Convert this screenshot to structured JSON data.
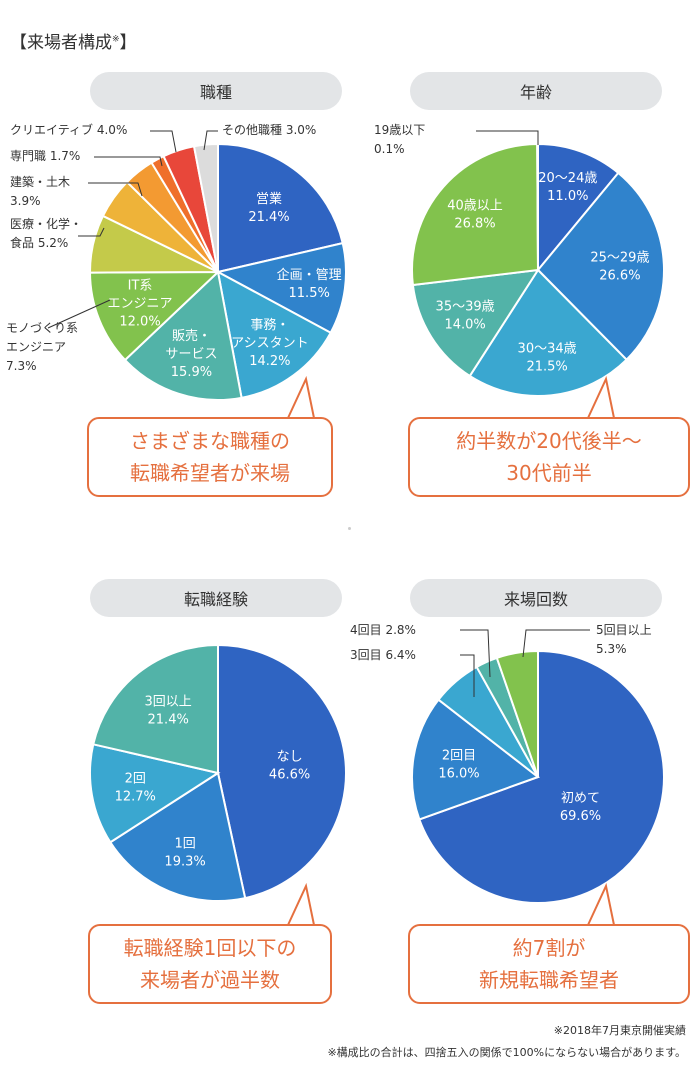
{
  "heading": "【来場者構成",
  "heading_mark": "※",
  "colors": {
    "callout_border": "#e5703f",
    "tag_bg": "#e3e5e7"
  },
  "panels": {
    "job": {
      "title": "職種",
      "callout": [
        "さまざまな職種の",
        "転職希望者が来場"
      ]
    },
    "age": {
      "title": "年齢",
      "callout": [
        "約半数が20代後半〜",
        "30代前半"
      ]
    },
    "exp": {
      "title": "転職経験",
      "callout": [
        "転職経験1回以下の",
        "来場者が過半数"
      ]
    },
    "visits": {
      "title": "来場回数",
      "callout": [
        "約7割が",
        "新規転職希望者"
      ]
    }
  },
  "footnotes": [
    "※2018年7月東京開催実績",
    "※構成比の合計は、四捨五入の関係で100%にならない場合があります。"
  ],
  "chart_data": [
    {
      "type": "pie",
      "title": "職種",
      "unit": "%",
      "slices": [
        {
          "label": [
            "営業"
          ],
          "value": 21.4,
          "value_text": "21.4%",
          "color": "#2f64c2",
          "placement": "inside"
        },
        {
          "label": [
            "企画・管理"
          ],
          "value": 11.5,
          "value_text": "11.5%",
          "color": "#3083cc",
          "placement": "inside"
        },
        {
          "label": [
            "事務・",
            "アシスタント"
          ],
          "value": 14.2,
          "value_text": "14.2%",
          "color": "#3aa7d0",
          "placement": "inside"
        },
        {
          "label": [
            "販売・",
            "サービス"
          ],
          "value": 15.9,
          "value_text": "15.9%",
          "color": "#52b3a8",
          "placement": "inside"
        },
        {
          "label": [
            "IT系",
            "エンジニア"
          ],
          "value": 12.0,
          "value_text": "12.0%",
          "color": "#82c24d",
          "placement": "inside"
        },
        {
          "label": [
            "モノづくり系",
            "エンジニア"
          ],
          "value": 7.3,
          "value_text": "7.3%",
          "color": "#c4ca4a",
          "placement": "outside",
          "text_lines": [
            "モノづくり系",
            "エンジニア",
            "7.3%"
          ]
        },
        {
          "label": [
            "医療・化学・",
            "食品"
          ],
          "value": 5.2,
          "value_text": "5.2%",
          "color": "#eeb339",
          "placement": "outside",
          "text_lines": [
            "医療・化学・",
            "食品 5.2%"
          ]
        },
        {
          "label": [
            "建築・土木"
          ],
          "value": 3.9,
          "value_text": "3.9%",
          "color": "#f39a32",
          "placement": "outside",
          "text_lines": [
            "建築・土木",
            "3.9%"
          ]
        },
        {
          "label": [
            "専門職"
          ],
          "value": 1.7,
          "value_text": "1.7%",
          "color": "#ef6f2b",
          "placement": "outside",
          "text_lines": [
            "専門職 1.7%"
          ]
        },
        {
          "label": [
            "クリエイティブ"
          ],
          "value": 4.0,
          "value_text": "4.0%",
          "color": "#e8473a",
          "placement": "outside",
          "text_lines": [
            "クリエイティブ 4.0%"
          ]
        },
        {
          "label": [
            "その他職種"
          ],
          "value": 3.0,
          "value_text": "3.0%",
          "color": "#dcdcdc",
          "placement": "outside",
          "text_lines": [
            "その他職種 3.0%"
          ]
        }
      ]
    },
    {
      "type": "pie",
      "title": "年齢",
      "unit": "%",
      "slices": [
        {
          "label": [
            "20〜24歳"
          ],
          "value": 11.0,
          "value_text": "11.0%",
          "color": "#2f64c2",
          "placement": "inside"
        },
        {
          "label": [
            "25〜29歳"
          ],
          "value": 26.6,
          "value_text": "26.6%",
          "color": "#3083cc",
          "placement": "inside"
        },
        {
          "label": [
            "30〜34歳"
          ],
          "value": 21.5,
          "value_text": "21.5%",
          "color": "#3aa7d0",
          "placement": "inside"
        },
        {
          "label": [
            "35〜39歳"
          ],
          "value": 14.0,
          "value_text": "14.0%",
          "color": "#52b3a8",
          "placement": "inside"
        },
        {
          "label": [
            "40歳以上"
          ],
          "value": 26.8,
          "value_text": "26.8%",
          "color": "#82c24d",
          "placement": "inside"
        },
        {
          "label": [
            "19歳以下"
          ],
          "value": 0.1,
          "value_text": "0.1%",
          "color": "#2f64c2",
          "placement": "outside",
          "text_lines": [
            "19歳以下",
            "0.1%"
          ]
        }
      ]
    },
    {
      "type": "pie",
      "title": "転職経験",
      "unit": "%",
      "slices": [
        {
          "label": [
            "なし"
          ],
          "value": 46.6,
          "value_text": "46.6%",
          "color": "#2f64c2",
          "placement": "inside"
        },
        {
          "label": [
            "1回"
          ],
          "value": 19.3,
          "value_text": "19.3%",
          "color": "#3083cc",
          "placement": "inside"
        },
        {
          "label": [
            "2回"
          ],
          "value": 12.7,
          "value_text": "12.7%",
          "color": "#3aa7d0",
          "placement": "inside"
        },
        {
          "label": [
            "3回以上"
          ],
          "value": 21.4,
          "value_text": "21.4%",
          "color": "#52b3a8",
          "placement": "inside"
        }
      ]
    },
    {
      "type": "pie",
      "title": "来場回数",
      "unit": "%",
      "slices": [
        {
          "label": [
            "初めて"
          ],
          "value": 69.6,
          "value_text": "69.6%",
          "color": "#2f64c2",
          "placement": "inside"
        },
        {
          "label": [
            "2回目"
          ],
          "value": 16.0,
          "value_text": "16.0%",
          "color": "#3083cc",
          "placement": "inside"
        },
        {
          "label": [
            "3回目"
          ],
          "value": 6.4,
          "value_text": "6.4%",
          "color": "#3aa7d0",
          "placement": "outside",
          "text_lines": [
            "3回目 6.4%"
          ]
        },
        {
          "label": [
            "4回目"
          ],
          "value": 2.8,
          "value_text": "2.8%",
          "color": "#52b3a8",
          "placement": "outside",
          "text_lines": [
            "4回目 2.8%"
          ]
        },
        {
          "label": [
            "5回目以上"
          ],
          "value": 5.3,
          "value_text": "5.3%",
          "color": "#82c24d",
          "placement": "outside",
          "text_lines": [
            "5回目以上",
            "5.3%"
          ]
        }
      ]
    }
  ]
}
